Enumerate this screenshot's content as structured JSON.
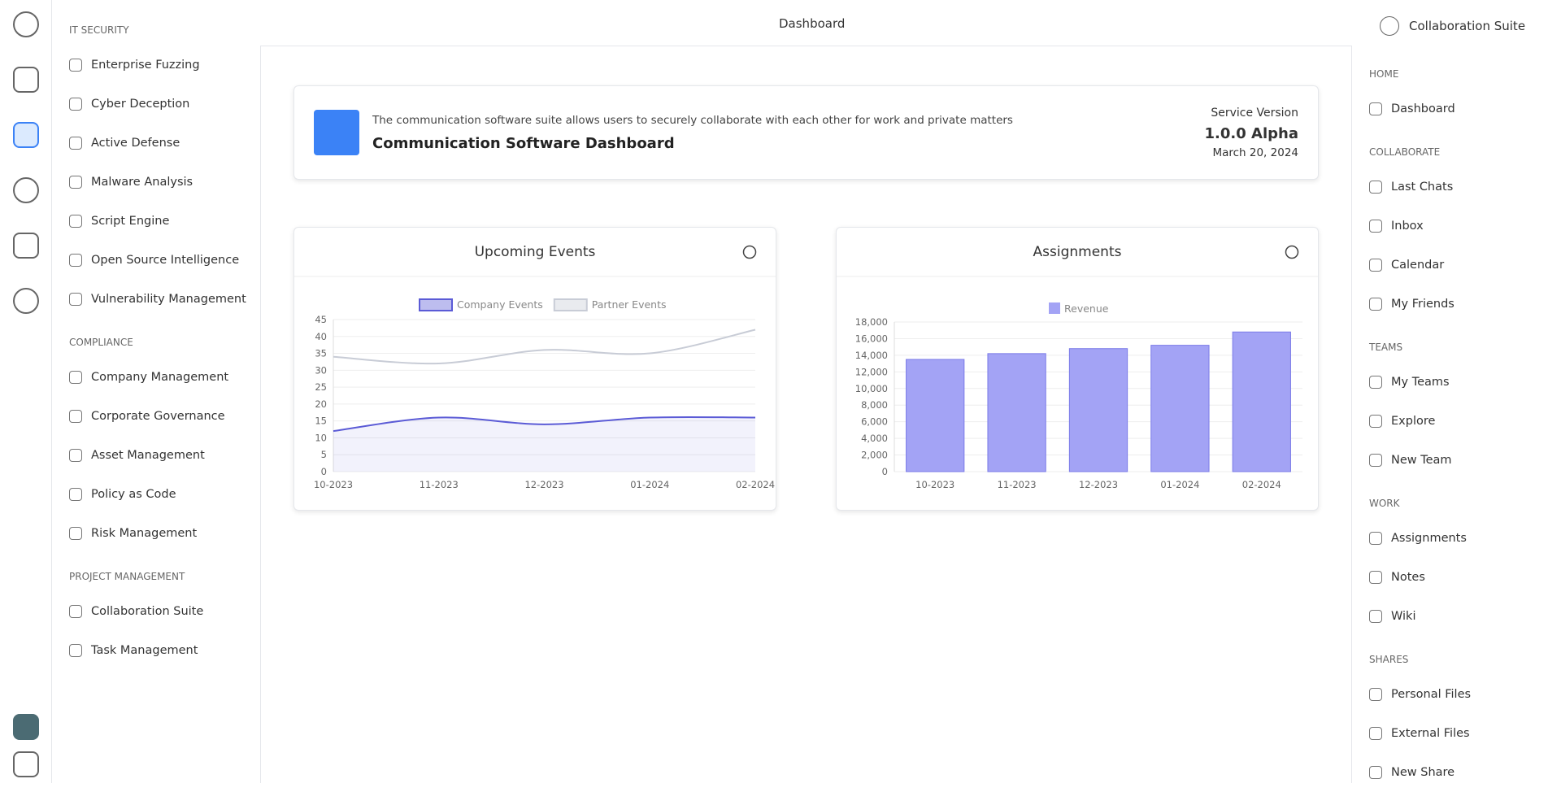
{
  "topbar": {
    "title": "Dashboard",
    "app": "Collaboration Suite"
  },
  "left_nav": [
    {
      "title": "IT SECURITY",
      "items": [
        "Enterprise Fuzzing",
        "Cyber Deception",
        "Active Defense",
        "Malware Analysis",
        "Script Engine",
        "Open Source Intelligence",
        "Vulnerability Management"
      ]
    },
    {
      "title": "COMPLIANCE",
      "items": [
        "Company Management",
        "Corporate Governance",
        "Asset Management",
        "Policy as Code",
        "Risk Management"
      ]
    },
    {
      "title": "PROJECT MANAGEMENT",
      "items": [
        "Collaboration Suite",
        "Task Management"
      ]
    }
  ],
  "right_nav": [
    {
      "title": "HOME",
      "items": [
        "Dashboard"
      ]
    },
    {
      "title": "COLLABORATE",
      "items": [
        "Last Chats",
        "Inbox",
        "Calendar",
        "My Friends"
      ]
    },
    {
      "title": "TEAMS",
      "items": [
        "My Teams",
        "Explore",
        "New Team"
      ]
    },
    {
      "title": "WORK",
      "items": [
        "Assignments",
        "Notes",
        "Wiki"
      ]
    },
    {
      "title": "SHARES",
      "items": [
        "Personal Files",
        "External Files",
        "New Share"
      ]
    }
  ],
  "banner": {
    "description": "The communication software suite allows users to securely collaborate with each other for work and private matters",
    "title": "Communication Software Dashboard",
    "version_label": "Service Version",
    "version": "1.0.0 Alpha",
    "date": "March 20, 2024"
  },
  "chart_data": [
    {
      "type": "line",
      "title": "Upcoming Events",
      "categories": [
        "10-2023",
        "11-2023",
        "12-2023",
        "01-2024",
        "02-2024"
      ],
      "series": [
        {
          "name": "Company Events",
          "color": "#5b5bd6",
          "values": [
            12,
            16,
            14,
            16,
            16
          ]
        },
        {
          "name": "Partner Events",
          "color": "#c8ccd6",
          "values": [
            34,
            32,
            36,
            35,
            42
          ]
        }
      ],
      "ylim": [
        0,
        45
      ],
      "yticks": [
        0,
        5,
        10,
        15,
        20,
        25,
        30,
        35,
        40,
        45
      ],
      "grid": true
    },
    {
      "type": "bar",
      "title": "Assignments",
      "categories": [
        "10-2023",
        "11-2023",
        "12-2023",
        "01-2024",
        "02-2024"
      ],
      "series": [
        {
          "name": "Revenue",
          "color": "#a3a3f5",
          "values": [
            13500,
            14200,
            14800,
            15200,
            16800
          ]
        }
      ],
      "ylim": [
        0,
        18000
      ],
      "yticks": [
        0,
        {
          "value": 2000,
          "label": "2,000"
        },
        {
          "value": 4000,
          "label": "4,000"
        },
        {
          "value": 6000,
          "label": "6,000"
        },
        {
          "value": 8000,
          "label": "8,000"
        },
        {
          "value": 10000,
          "label": "10,000"
        },
        {
          "value": 12000,
          "label": "12,000"
        },
        {
          "value": 14000,
          "label": "14,000"
        },
        {
          "value": 16000,
          "label": "16,000"
        },
        {
          "value": 18000,
          "label": "18,000"
        }
      ],
      "grid": true
    }
  ]
}
